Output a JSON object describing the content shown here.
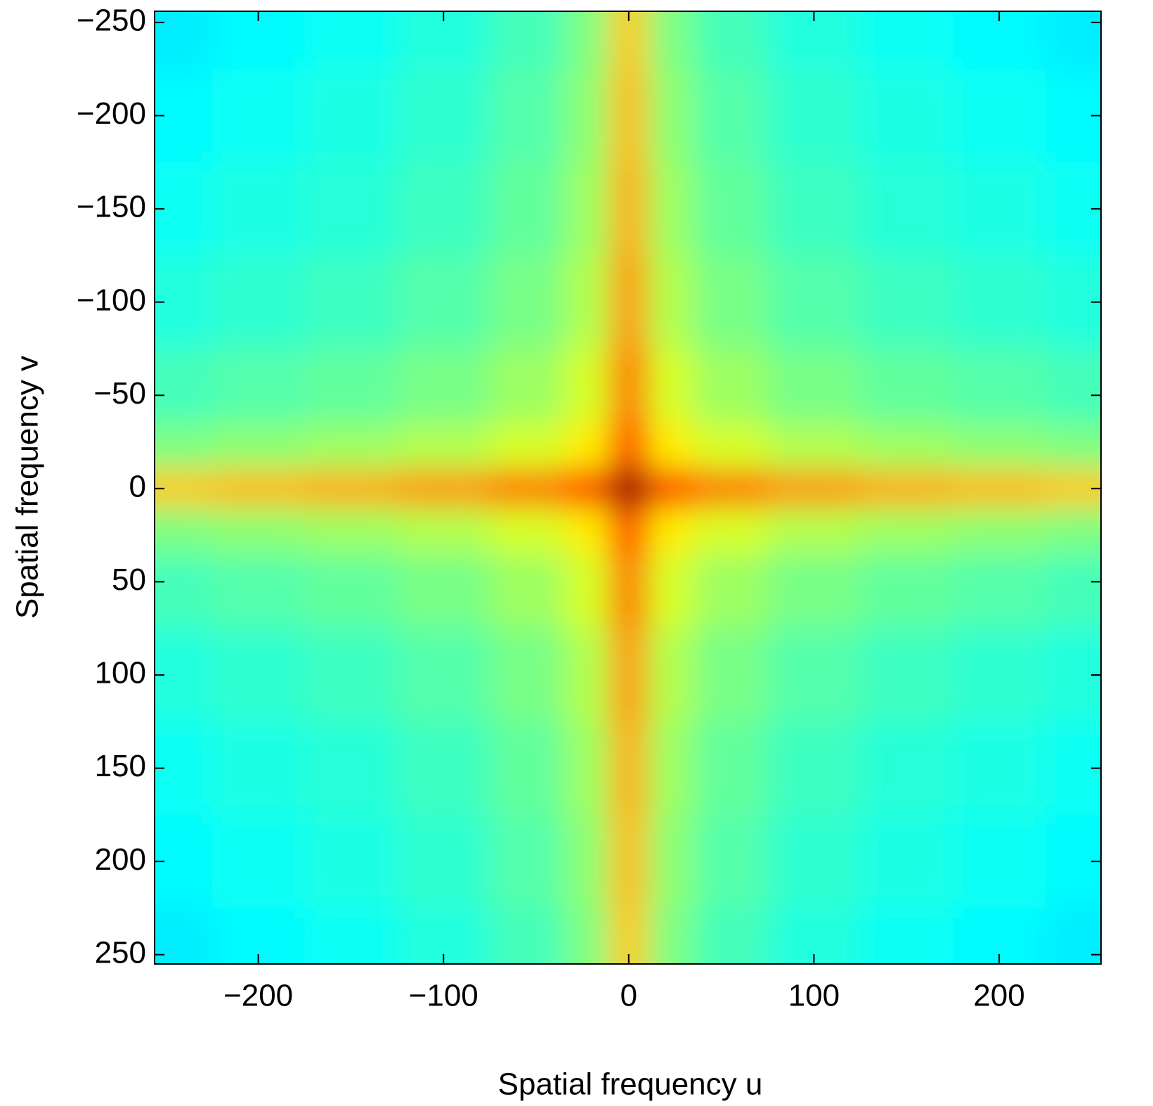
{
  "chart_data": {
    "type": "heatmap",
    "xlabel": "Spatial frequency u",
    "ylabel": "Spatial frequency v",
    "x": [
      -250,
      -200,
      -150,
      -100,
      -50,
      -20,
      0,
      20,
      50,
      100,
      150,
      200,
      250
    ],
    "y": [
      -250,
      -200,
      -150,
      -100,
      -50,
      -20,
      0,
      20,
      50,
      100,
      150,
      200,
      250
    ],
    "values": [
      [
        0.2,
        0.22,
        0.24,
        0.27,
        0.32,
        0.4,
        0.65,
        0.4,
        0.32,
        0.27,
        0.24,
        0.22,
        0.2
      ],
      [
        0.22,
        0.24,
        0.26,
        0.29,
        0.34,
        0.42,
        0.67,
        0.42,
        0.34,
        0.29,
        0.26,
        0.24,
        0.22
      ],
      [
        0.24,
        0.26,
        0.28,
        0.31,
        0.36,
        0.44,
        0.69,
        0.44,
        0.36,
        0.31,
        0.28,
        0.26,
        0.24
      ],
      [
        0.27,
        0.29,
        0.31,
        0.34,
        0.39,
        0.47,
        0.72,
        0.47,
        0.39,
        0.34,
        0.31,
        0.29,
        0.27
      ],
      [
        0.32,
        0.34,
        0.36,
        0.39,
        0.44,
        0.52,
        0.77,
        0.52,
        0.44,
        0.39,
        0.36,
        0.34,
        0.32
      ],
      [
        0.4,
        0.42,
        0.44,
        0.47,
        0.52,
        0.6,
        0.85,
        0.6,
        0.52,
        0.47,
        0.44,
        0.42,
        0.4
      ],
      [
        0.65,
        0.67,
        0.69,
        0.72,
        0.77,
        0.85,
        1.1,
        0.85,
        0.77,
        0.72,
        0.69,
        0.67,
        0.65
      ],
      [
        0.4,
        0.42,
        0.44,
        0.47,
        0.52,
        0.6,
        0.85,
        0.6,
        0.52,
        0.47,
        0.44,
        0.42,
        0.4
      ],
      [
        0.32,
        0.34,
        0.36,
        0.39,
        0.44,
        0.52,
        0.77,
        0.52,
        0.44,
        0.39,
        0.36,
        0.34,
        0.32
      ],
      [
        0.27,
        0.29,
        0.31,
        0.34,
        0.39,
        0.47,
        0.72,
        0.47,
        0.39,
        0.34,
        0.31,
        0.29,
        0.27
      ],
      [
        0.24,
        0.26,
        0.28,
        0.31,
        0.36,
        0.44,
        0.69,
        0.44,
        0.36,
        0.31,
        0.28,
        0.26,
        0.24
      ],
      [
        0.22,
        0.24,
        0.26,
        0.29,
        0.34,
        0.42,
        0.67,
        0.42,
        0.34,
        0.29,
        0.26,
        0.24,
        0.22
      ],
      [
        0.2,
        0.22,
        0.24,
        0.27,
        0.32,
        0.4,
        0.65,
        0.4,
        0.32,
        0.27,
        0.24,
        0.22,
        0.2
      ]
    ],
    "clim": [
      -0.3,
      1.1
    ],
    "colormap": "jet",
    "xlim": [
      -256,
      255
    ],
    "ylim": [
      -256,
      255
    ],
    "y_reversed": true,
    "xticks": [
      {
        "value": -200,
        "label": "−200"
      },
      {
        "value": -100,
        "label": "−100"
      },
      0,
      100,
      200
    ],
    "yticks": [
      {
        "value": -250,
        "label": "−250"
      },
      {
        "value": -200,
        "label": "−200"
      },
      {
        "value": -150,
        "label": "−150"
      },
      {
        "value": -100,
        "label": "−100"
      },
      {
        "value": -50,
        "label": "−50"
      },
      0,
      50,
      100,
      150,
      200,
      250
    ]
  }
}
